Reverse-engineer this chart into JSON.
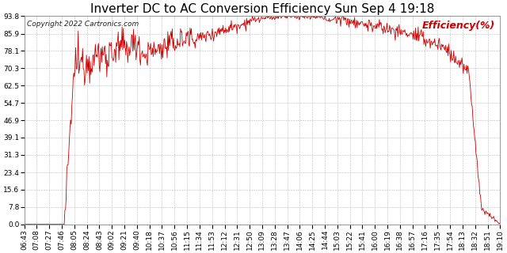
{
  "title": "Inverter DC to AC Conversion Efficiency Sun Sep 4 19:18",
  "copyright": "Copyright 2022 Cartronics.com",
  "legend_label": "Efficiency(%)",
  "line_color": "#cc0000",
  "background_color": "#ffffff",
  "plot_bg_color": "#ffffff",
  "grid_color": "#bbbbbb",
  "yticks": [
    0.0,
    7.8,
    15.6,
    23.4,
    31.3,
    39.1,
    46.9,
    54.7,
    62.5,
    70.3,
    78.1,
    85.9,
    93.8
  ],
  "xtick_labels": [
    "06:43",
    "07:08",
    "07:27",
    "07:46",
    "08:05",
    "08:24",
    "08:43",
    "09:02",
    "09:21",
    "09:40",
    "10:18",
    "10:37",
    "10:56",
    "11:15",
    "11:34",
    "11:53",
    "12:12",
    "12:31",
    "12:50",
    "13:09",
    "13:28",
    "13:47",
    "14:06",
    "14:25",
    "14:44",
    "15:03",
    "15:22",
    "15:41",
    "16:00",
    "16:19",
    "16:38",
    "16:57",
    "17:16",
    "17:35",
    "17:54",
    "18:13",
    "18:32",
    "18:51",
    "19:10"
  ],
  "ylim": [
    0.0,
    93.8
  ],
  "title_fontsize": 11,
  "copyright_fontsize": 6.5,
  "legend_fontsize": 9,
  "tick_fontsize": 6.5
}
